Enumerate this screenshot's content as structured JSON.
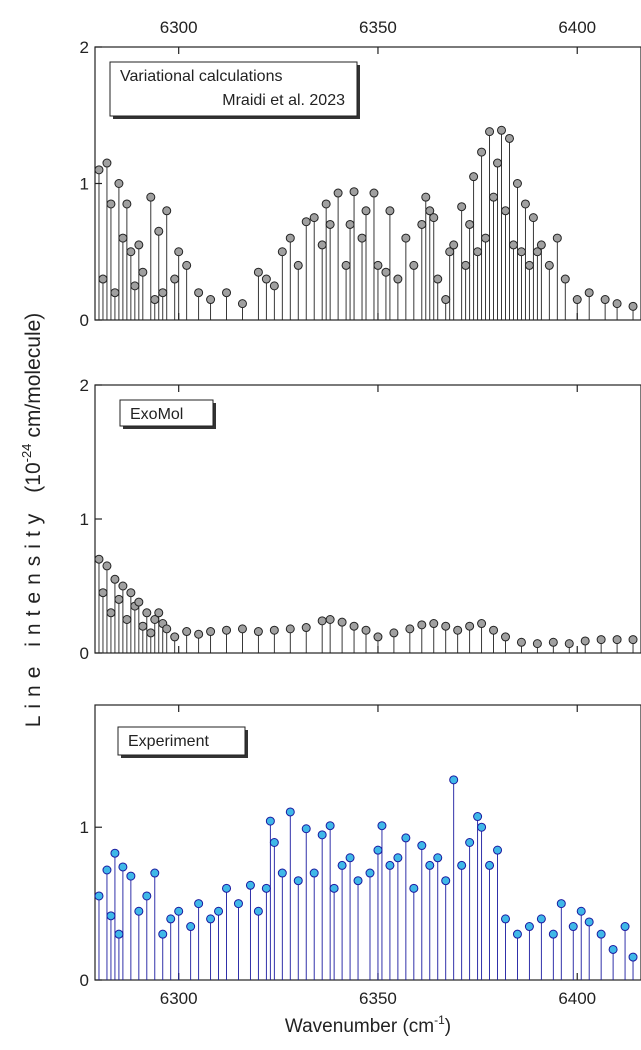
{
  "y_label": "Line intensity",
  "y_label_unit": "(10",
  "y_label_exp": "-24",
  "y_label_unit_end": "cm/molecule)",
  "x_label": "Wavenumber (cm",
  "x_label_exp": "-1",
  "x_label_end": ")",
  "chart_data": [
    {
      "type": "stem",
      "annotation": [
        "Variational calculations",
        "Mraidi et al. 2023"
      ],
      "xlim": [
        6279,
        6416
      ],
      "xticks": [
        6300,
        6350,
        6400
      ],
      "ylim": [
        0,
        2
      ],
      "yticks": [
        0,
        1,
        2
      ],
      "x": [
        6280,
        6281,
        6282,
        6283,
        6284,
        6285,
        6286,
        6287,
        6288,
        6289,
        6290,
        6291,
        6293,
        6294,
        6295,
        6296,
        6297,
        6299,
        6300,
        6302,
        6305,
        6308,
        6312,
        6316,
        6320,
        6322,
        6324,
        6326,
        6328,
        6330,
        6332,
        6334,
        6336,
        6337,
        6338,
        6340,
        6342,
        6343,
        6344,
        6346,
        6347,
        6349,
        6350,
        6352,
        6353,
        6355,
        6357,
        6359,
        6361,
        6362,
        6363,
        6364,
        6365,
        6367,
        6368,
        6369,
        6371,
        6372,
        6373,
        6374,
        6375,
        6376,
        6377,
        6378,
        6379,
        6380,
        6381,
        6382,
        6383,
        6384,
        6385,
        6386,
        6387,
        6388,
        6389,
        6390,
        6391,
        6393,
        6395,
        6397,
        6400,
        6403,
        6407,
        6410,
        6414
      ],
      "series": [
        {
          "color": "#a0a0a0",
          "stem_color": "#222222",
          "values": [
            1.1,
            0.3,
            1.15,
            0.85,
            0.2,
            1.0,
            0.6,
            0.85,
            0.5,
            0.25,
            0.55,
            0.35,
            0.9,
            0.15,
            0.65,
            0.2,
            0.8,
            0.3,
            0.5,
            0.4,
            0.2,
            0.15,
            0.2,
            0.12,
            0.35,
            0.3,
            0.25,
            0.5,
            0.6,
            0.4,
            0.72,
            0.75,
            0.55,
            0.85,
            0.7,
            0.93,
            0.4,
            0.7,
            0.94,
            0.6,
            0.8,
            0.93,
            0.4,
            0.35,
            0.8,
            0.3,
            0.6,
            0.4,
            0.7,
            0.9,
            0.8,
            0.75,
            0.3,
            0.15,
            0.5,
            0.55,
            0.83,
            0.4,
            0.7,
            1.05,
            0.5,
            1.23,
            0.6,
            1.38,
            0.9,
            1.15,
            1.39,
            0.8,
            1.33,
            0.55,
            1.0,
            0.5,
            0.85,
            0.4,
            0.75,
            0.5,
            0.55,
            0.4,
            0.6,
            0.3,
            0.15,
            0.2,
            0.15,
            0.12,
            0.1
          ]
        }
      ]
    },
    {
      "type": "stem",
      "annotation": [
        "ExoMol"
      ],
      "xlim": [
        6279,
        6416
      ],
      "xticks": [
        6300,
        6350,
        6400
      ],
      "ylim": [
        0,
        2
      ],
      "yticks": [
        0,
        1,
        2
      ],
      "x": [
        6280,
        6281,
        6282,
        6283,
        6284,
        6285,
        6286,
        6287,
        6288,
        6289,
        6290,
        6291,
        6292,
        6293,
        6294,
        6295,
        6296,
        6297,
        6299,
        6302,
        6305,
        6308,
        6312,
        6316,
        6320,
        6324,
        6328,
        6332,
        6336,
        6338,
        6341,
        6344,
        6347,
        6350,
        6354,
        6358,
        6361,
        6364,
        6367,
        6370,
        6373,
        6376,
        6379,
        6382,
        6386,
        6390,
        6394,
        6398,
        6402,
        6406,
        6410,
        6414
      ],
      "series": [
        {
          "color": "#a0a0a0",
          "stem_color": "#222222",
          "values": [
            0.7,
            0.45,
            0.65,
            0.3,
            0.55,
            0.4,
            0.5,
            0.25,
            0.45,
            0.35,
            0.38,
            0.2,
            0.3,
            0.15,
            0.25,
            0.3,
            0.22,
            0.18,
            0.12,
            0.16,
            0.14,
            0.16,
            0.17,
            0.18,
            0.16,
            0.17,
            0.18,
            0.19,
            0.24,
            0.25,
            0.23,
            0.2,
            0.17,
            0.12,
            0.15,
            0.18,
            0.21,
            0.22,
            0.2,
            0.17,
            0.2,
            0.22,
            0.17,
            0.12,
            0.08,
            0.07,
            0.08,
            0.07,
            0.09,
            0.1,
            0.1,
            0.1
          ]
        }
      ]
    },
    {
      "type": "stem",
      "annotation": [
        "Experiment"
      ],
      "xlim": [
        6279,
        6416
      ],
      "xticks": [
        6300,
        6350,
        6400
      ],
      "ylim": [
        0,
        1.8
      ],
      "yticks": [
        0,
        1
      ],
      "x": [
        6280,
        6282,
        6283,
        6284,
        6285,
        6286,
        6288,
        6290,
        6292,
        6294,
        6296,
        6298,
        6300,
        6303,
        6305,
        6308,
        6310,
        6312,
        6315,
        6318,
        6320,
        6322,
        6323,
        6324,
        6326,
        6328,
        6330,
        6332,
        6334,
        6336,
        6338,
        6339,
        6341,
        6343,
        6345,
        6348,
        6350,
        6351,
        6353,
        6355,
        6357,
        6359,
        6361,
        6363,
        6365,
        6367,
        6369,
        6371,
        6373,
        6375,
        6376,
        6378,
        6380,
        6382,
        6385,
        6388,
        6391,
        6394,
        6396,
        6399,
        6401,
        6403,
        6406,
        6409,
        6412,
        6414
      ],
      "series": [
        {
          "color": "#3fb8e8",
          "stem_color": "#1a1aa0",
          "values": [
            0.55,
            0.72,
            0.42,
            0.83,
            0.3,
            0.74,
            0.68,
            0.45,
            0.55,
            0.7,
            0.3,
            0.4,
            0.45,
            0.35,
            0.5,
            0.4,
            0.45,
            0.6,
            0.5,
            0.62,
            0.45,
            0.6,
            1.04,
            0.9,
            0.7,
            1.1,
            0.65,
            0.99,
            0.7,
            0.95,
            1.01,
            0.6,
            0.75,
            0.8,
            0.65,
            0.7,
            0.85,
            1.01,
            0.75,
            0.8,
            0.93,
            0.6,
            0.88,
            0.75,
            0.8,
            0.65,
            1.31,
            0.75,
            0.9,
            1.07,
            1.0,
            0.75,
            0.85,
            0.4,
            0.3,
            0.35,
            0.4,
            0.3,
            0.5,
            0.35,
            0.45,
            0.38,
            0.3,
            0.2,
            0.35,
            0.15
          ]
        }
      ]
    }
  ]
}
